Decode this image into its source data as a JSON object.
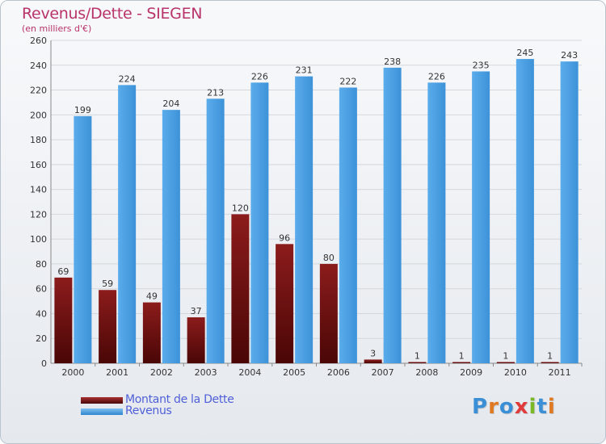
{
  "chart_data": {
    "type": "bar",
    "title": "Revenus/Dette - SIEGEN",
    "subtitle": "(en milliers d'€)",
    "categories": [
      "2000",
      "2001",
      "2002",
      "2003",
      "2004",
      "2005",
      "2006",
      "2007",
      "2008",
      "2009",
      "2010",
      "2011"
    ],
    "series": [
      {
        "name": "Montant de la Dette",
        "color": "#7a1414",
        "values": [
          69,
          59,
          49,
          37,
          120,
          96,
          80,
          3,
          1,
          1,
          1,
          1
        ]
      },
      {
        "name": "Revenus",
        "color": "#4aa0e3",
        "values": [
          199,
          224,
          204,
          213,
          226,
          231,
          222,
          238,
          226,
          235,
          245,
          243
        ]
      }
    ],
    "ylim": [
      0,
      260
    ],
    "yticks": [
      0,
      20,
      40,
      60,
      80,
      100,
      120,
      140,
      160,
      180,
      200,
      220,
      240,
      260
    ],
    "grid": true,
    "legend": "bottom-left",
    "xlabel": "",
    "ylabel": ""
  },
  "logo": {
    "text": "Proxiti",
    "letters": [
      "P",
      "r",
      "o",
      "x",
      "i",
      "t",
      "i"
    ],
    "colors": [
      "#3a8fd6",
      "#e07a22",
      "#3a8fd6",
      "#e03a3a",
      "#7ab828",
      "#3a8fd6",
      "#e07a22"
    ]
  }
}
